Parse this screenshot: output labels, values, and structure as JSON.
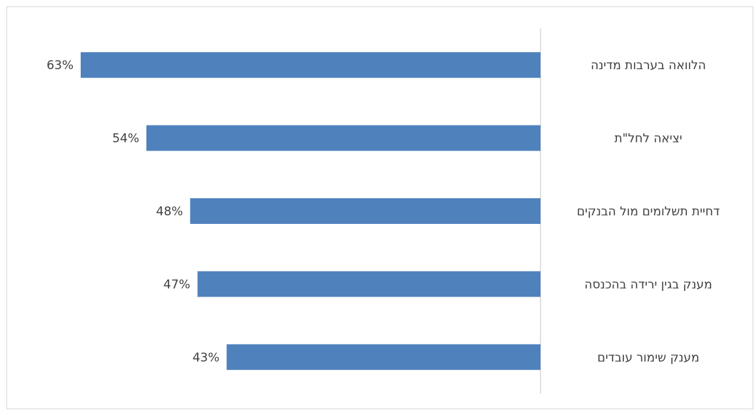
{
  "chart_data": {
    "type": "bar",
    "orientation": "horizontal",
    "categories": [
      "הלוואה בערבות מדינה",
      "יציאה לחל\"ת",
      "דחיית תשלומים מול הבנקים",
      "מענק בגין ירידה בהכנסה",
      "מענק שימור עובדים"
    ],
    "values": [
      63,
      54,
      48,
      47,
      43
    ],
    "value_labels": [
      "63%",
      "54%",
      "48%",
      "47%",
      "43%"
    ],
    "value_unit": "%",
    "xlim": [
      0,
      63
    ],
    "title": "",
    "xlabel": "",
    "ylabel": "",
    "grid": false,
    "legend": "none",
    "bar_color": "#4f81bd",
    "axis_color": "#d9d9d9",
    "text_color": "#404040"
  }
}
